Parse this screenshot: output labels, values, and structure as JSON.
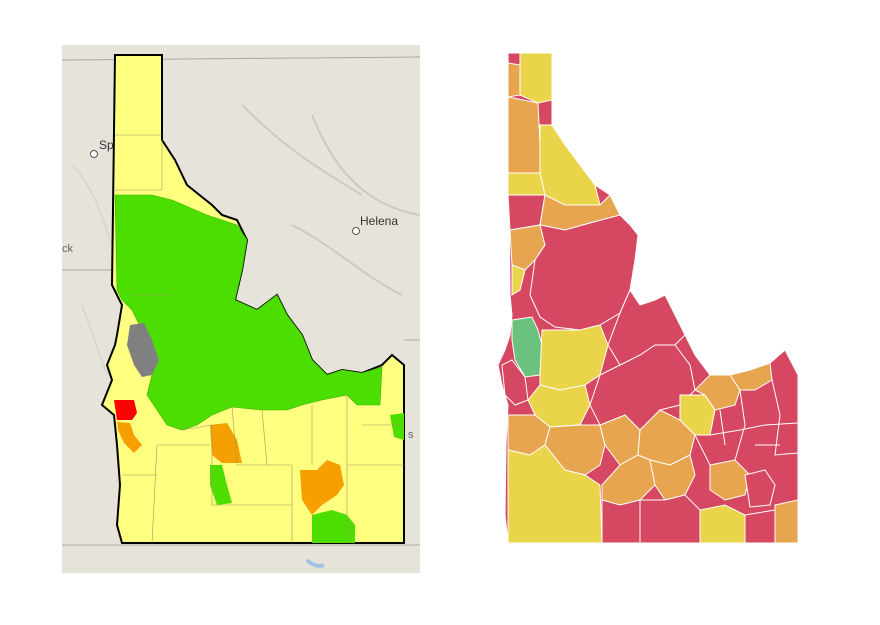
{
  "left_map": {
    "basemap_labels": {
      "city_helena": "Helena",
      "city_spokane_fragment": "Sp",
      "edge_fragment_left": "ck",
      "edge_fragment_right": "s"
    },
    "colors": {
      "background": "#e6e3da",
      "yellow": "#ffff80",
      "green": "#4cde00",
      "orange": "#f5a000",
      "red": "#ff0000",
      "gray": "#808080",
      "border": "#000000"
    }
  },
  "right_map": {
    "colors": {
      "red": "#d64862",
      "orange": "#e7a550",
      "yellow": "#e9d44a",
      "green": "#6bc27e",
      "county_line": "#ffffff"
    }
  }
}
